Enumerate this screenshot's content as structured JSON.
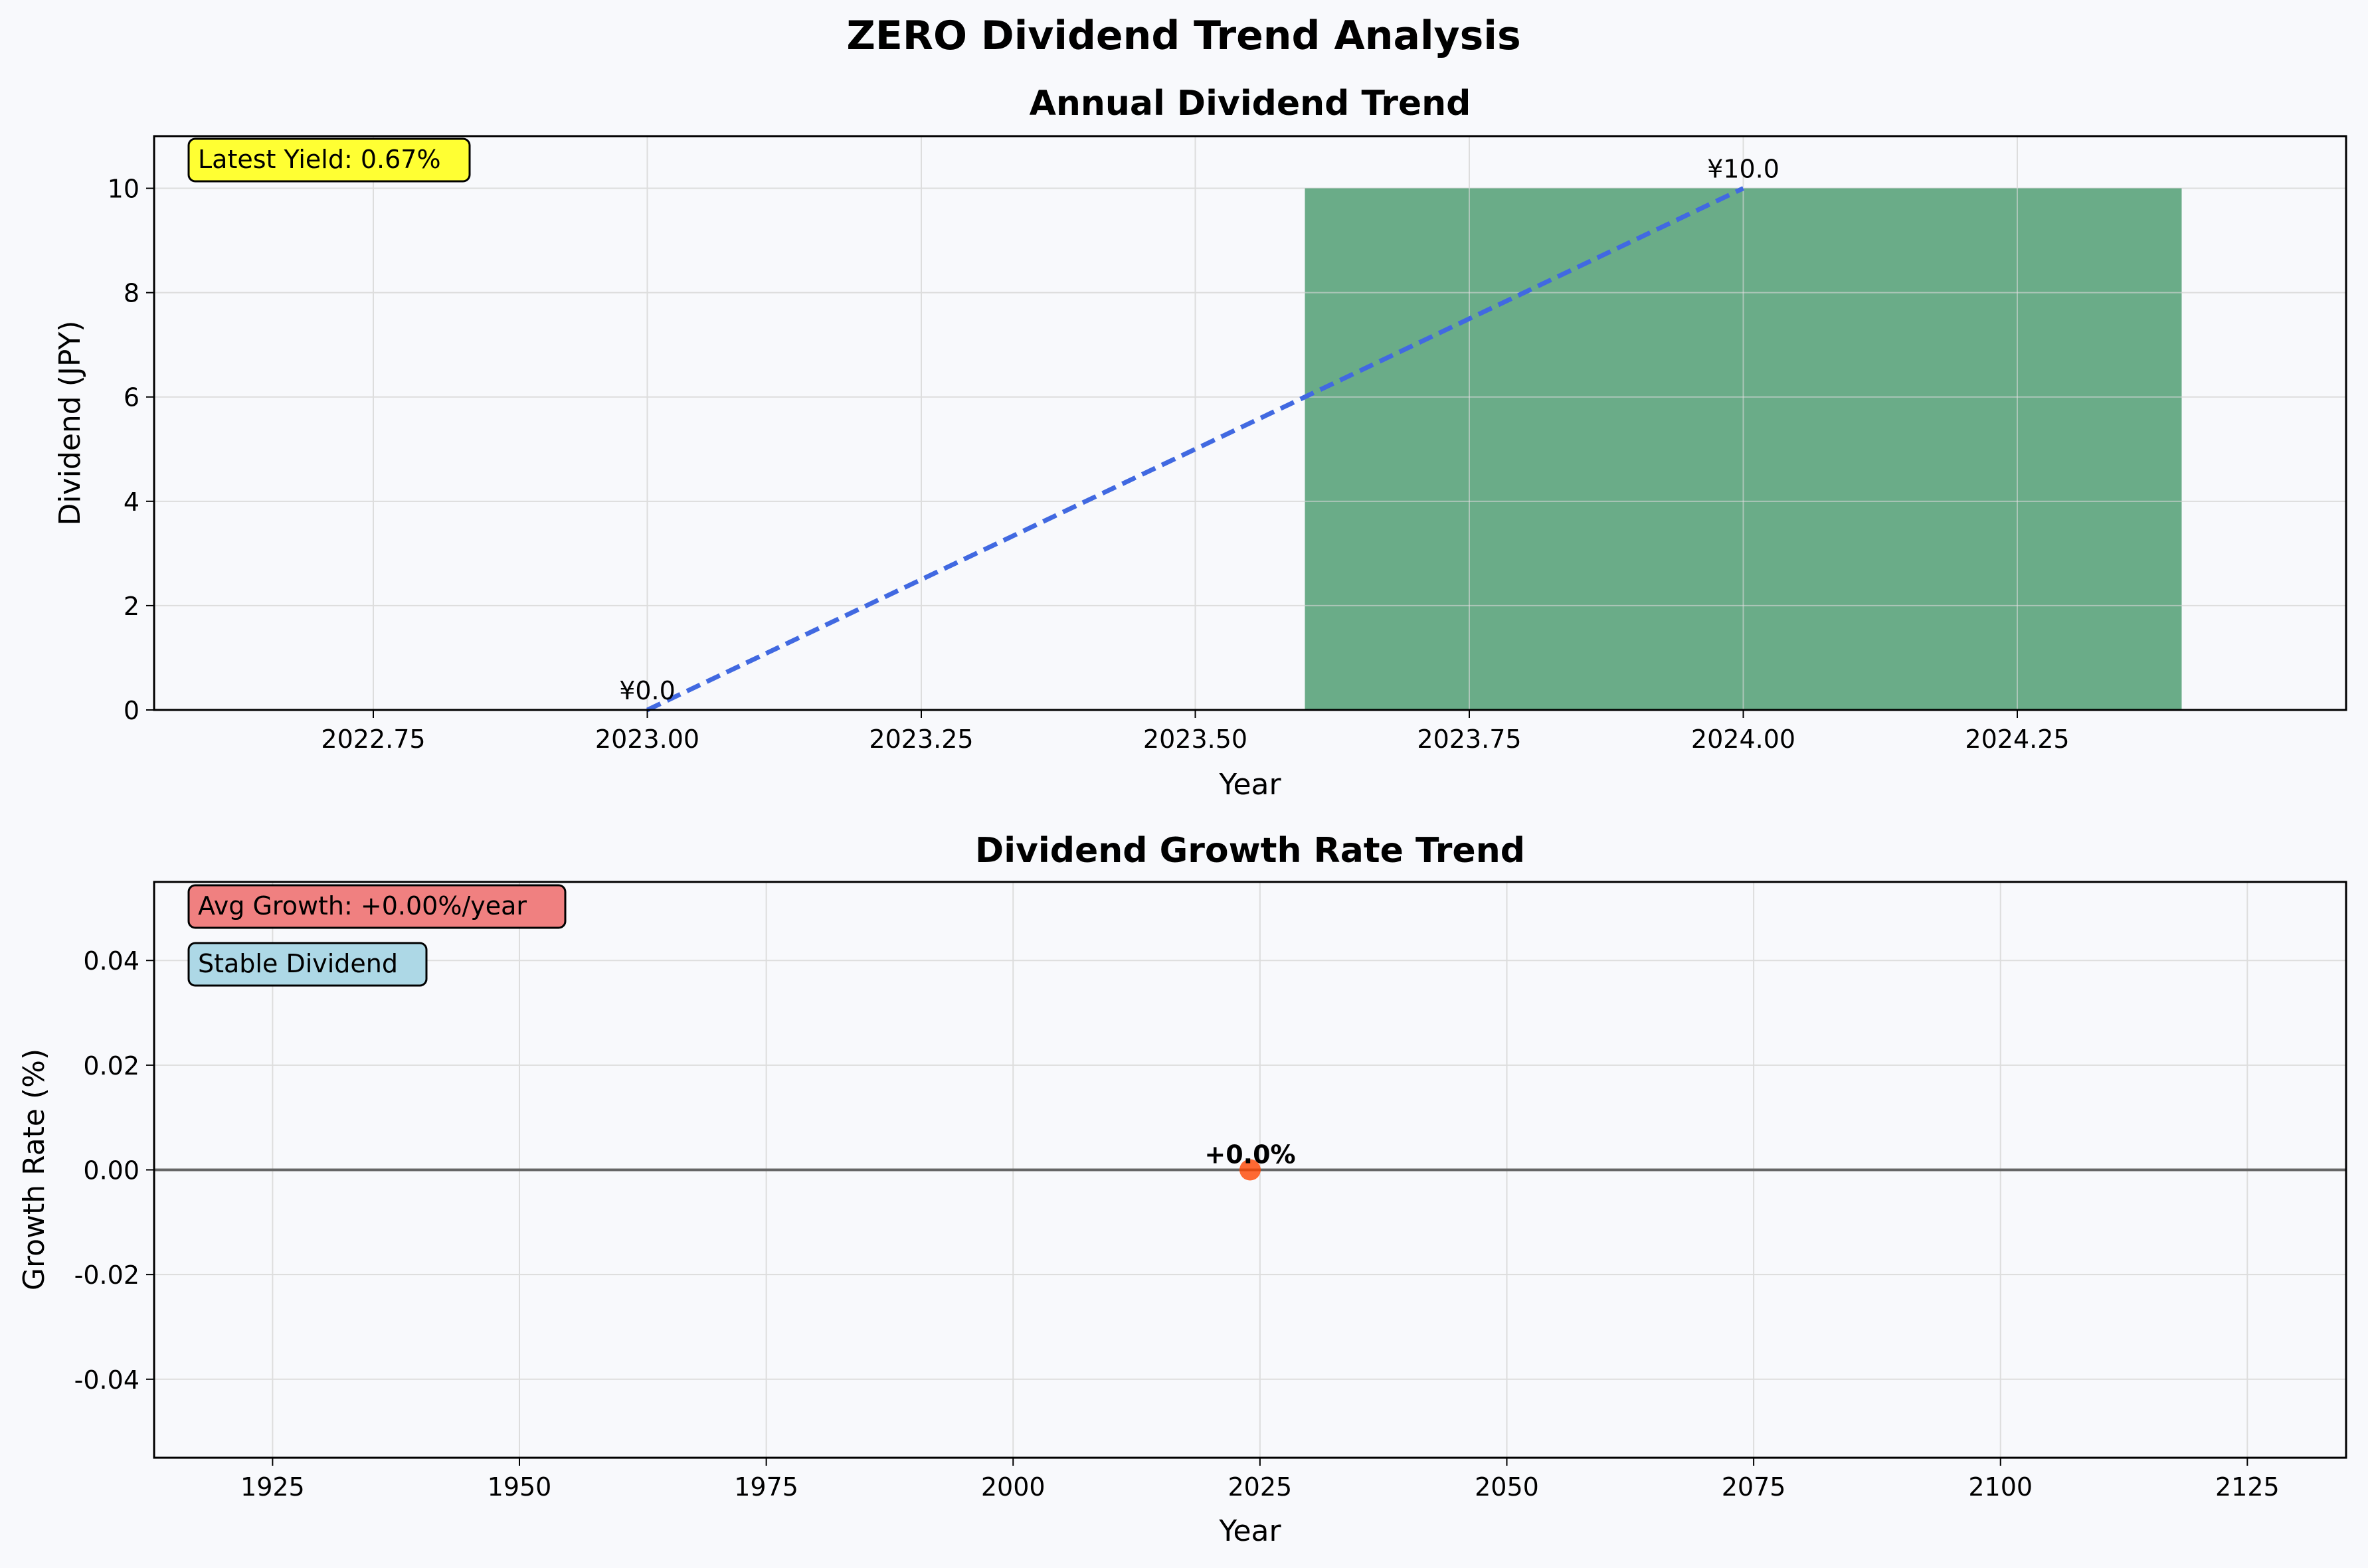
{
  "figure": {
    "title": "ZERO Dividend Trend Analysis",
    "background": "#f8f9fc"
  },
  "chart_data": [
    {
      "type": "bar",
      "title": "Annual Dividend Trend",
      "xlabel": "Year",
      "ylabel": "Dividend (JPY)",
      "xlim": [
        2022.55,
        2024.55
      ],
      "ylim": [
        0,
        11
      ],
      "x_ticks": [
        2022.75,
        2023.0,
        2023.25,
        2023.5,
        2023.75,
        2024.0,
        2024.25
      ],
      "x_tick_labels": [
        "2022.75",
        "2023.00",
        "2023.25",
        "2023.50",
        "2023.75",
        "2024.00",
        "2024.25"
      ],
      "y_ticks": [
        0,
        2,
        4,
        6,
        8,
        10
      ],
      "y_tick_labels": [
        "0",
        "2",
        "4",
        "6",
        "8",
        "10"
      ],
      "grid": true,
      "bars": [
        {
          "x": 2024,
          "value": 10,
          "width": 0.8,
          "color": "#2e8b57"
        }
      ],
      "trend_line": {
        "x": [
          2023,
          2024
        ],
        "y": [
          0,
          10
        ],
        "color": "#4169e1",
        "style": "dashed"
      },
      "data_labels": [
        {
          "x": 2023,
          "y": 0,
          "text": "¥0.0"
        },
        {
          "x": 2024,
          "y": 10,
          "text": "¥10.0"
        }
      ],
      "annotation": {
        "text": "Latest Yield: 0.67%",
        "color": "#ffff33",
        "placement": "top-left"
      }
    },
    {
      "type": "scatter",
      "title": "Dividend Growth Rate Trend",
      "xlabel": "Year",
      "ylabel": "Growth Rate (%)",
      "xlim": [
        1913,
        2135
      ],
      "ylim": [
        -0.055,
        0.055
      ],
      "x_ticks": [
        1925,
        1950,
        1975,
        2000,
        2025,
        2050,
        2075,
        2100,
        2125
      ],
      "x_tick_labels": [
        "1925",
        "1950",
        "1975",
        "2000",
        "2025",
        "2050",
        "2075",
        "2100",
        "2125"
      ],
      "y_ticks": [
        0.04,
        0.02,
        0.0,
        -0.02,
        -0.04
      ],
      "y_tick_labels": [
        "0.04",
        "0.02",
        "0.00",
        "-0.02",
        "-0.04"
      ],
      "grid": true,
      "zero_line_color": "#666666",
      "points": [
        {
          "x": 2024,
          "y": 0.0,
          "color": "#ff4500"
        }
      ],
      "data_labels": [
        {
          "x": 2024,
          "y": 0.0,
          "text": "+0.0%"
        }
      ],
      "annotations": [
        {
          "text": "Avg Growth: +0.00%/year",
          "color": "#f08080",
          "placement": "top-left"
        },
        {
          "text": "Stable Dividend",
          "color": "#add8e6",
          "placement": "top-left-below"
        }
      ]
    }
  ]
}
